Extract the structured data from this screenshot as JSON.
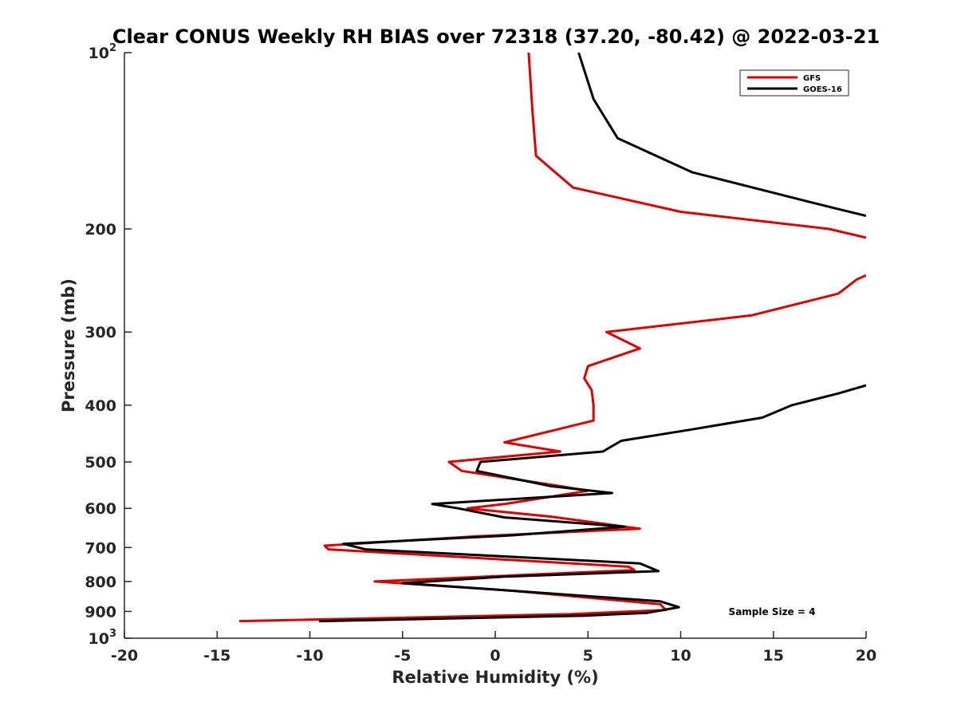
{
  "chart_data": {
    "type": "line",
    "title": "Clear CONUS Weekly RH BIAS over 72318 (37.20, -80.42) @ 2022-03-21",
    "xlabel": "Relative Humidity (%)",
    "ylabel": "Pressure (mb)",
    "xlim": [
      -20,
      20
    ],
    "ylim": [
      100,
      1000
    ],
    "y_scale": "log",
    "y_reversed": true,
    "x_ticks": [
      "-20",
      "-15",
      "-10",
      "-5",
      "0",
      "5",
      "10",
      "15",
      "20"
    ],
    "y_ticks": [
      {
        "value": 100,
        "base": "10",
        "exp": "2"
      },
      {
        "value": 200,
        "label": "200"
      },
      {
        "value": 300,
        "label": "300"
      },
      {
        "value": 400,
        "label": "400"
      },
      {
        "value": 500,
        "label": "500"
      },
      {
        "value": 600,
        "label": "600"
      },
      {
        "value": 700,
        "label": "700"
      },
      {
        "value": 800,
        "label": "800"
      },
      {
        "value": 900,
        "label": "900"
      },
      {
        "value": 1000,
        "base": "10",
        "exp": "3"
      }
    ],
    "grid": false,
    "legend_position": "top-right",
    "annotation": "Sample Size = 4",
    "series": [
      {
        "name": "GFS",
        "color": "#e00000",
        "segments": [
          [
            [
              1.8,
              100
            ],
            [
              2.0,
              125
            ],
            [
              2.2,
              150
            ],
            [
              4.2,
              170
            ],
            [
              10.0,
              187
            ],
            [
              18.0,
              200
            ],
            [
              20.0,
              207
            ]
          ],
          [
            [
              20.0,
              240
            ],
            [
              19.5,
              244
            ],
            [
              18.5,
              258
            ],
            [
              13.8,
              281
            ],
            [
              6.0,
              300
            ],
            [
              7.8,
              320
            ],
            [
              5.0,
              343
            ],
            [
              4.8,
              360
            ],
            [
              5.2,
              377
            ],
            [
              5.3,
              400
            ],
            [
              5.3,
              425
            ],
            [
              0.5,
              463
            ],
            [
              3.5,
              480
            ],
            [
              -2.5,
              500
            ],
            [
              -1.8,
              518
            ],
            [
              3.5,
              550
            ],
            [
              5.0,
              560
            ],
            [
              0.5,
              590
            ],
            [
              -1.5,
              600
            ],
            [
              3.0,
              620
            ],
            [
              7.8,
              650
            ],
            [
              -1.0,
              670
            ],
            [
              -9.2,
              695
            ],
            [
              -9.0,
              705
            ],
            [
              7.2,
              755
            ],
            [
              7.5,
              765
            ],
            [
              -6.5,
              800
            ],
            [
              1.0,
              830
            ],
            [
              8.9,
              875
            ],
            [
              9.2,
              895
            ],
            [
              4.0,
              910
            ],
            [
              -13.8,
              935
            ]
          ]
        ]
      },
      {
        "name": "GOES-16",
        "color": "#000000",
        "segments": [
          [
            [
              4.5,
              100
            ],
            [
              5.3,
              120
            ],
            [
              6.6,
              140
            ],
            [
              10.6,
              160
            ],
            [
              17.0,
              180
            ],
            [
              18.5,
              185
            ],
            [
              20.0,
              190
            ]
          ],
          [
            [
              20.0,
              370
            ],
            [
              18.5,
              382
            ],
            [
              16.0,
              400
            ],
            [
              14.4,
              420
            ],
            [
              10.6,
              440
            ],
            [
              6.8,
              460
            ],
            [
              5.8,
              480
            ],
            [
              -0.8,
              500
            ],
            [
              -1.0,
              518
            ],
            [
              3.0,
              550
            ],
            [
              6.3,
              565
            ],
            [
              -3.4,
              590
            ],
            [
              -2.0,
              600
            ],
            [
              0.5,
              622
            ],
            [
              7.0,
              645
            ],
            [
              1.0,
              667
            ],
            [
              -8.2,
              690
            ],
            [
              -7.0,
              705
            ],
            [
              7.8,
              745
            ],
            [
              8.8,
              768
            ],
            [
              0.5,
              785
            ],
            [
              -5.0,
              805
            ],
            [
              1.0,
              830
            ],
            [
              8.9,
              865
            ],
            [
              9.9,
              885
            ],
            [
              8.2,
              905
            ],
            [
              4.8,
              915
            ],
            [
              -9.5,
              935
            ]
          ]
        ]
      }
    ]
  }
}
